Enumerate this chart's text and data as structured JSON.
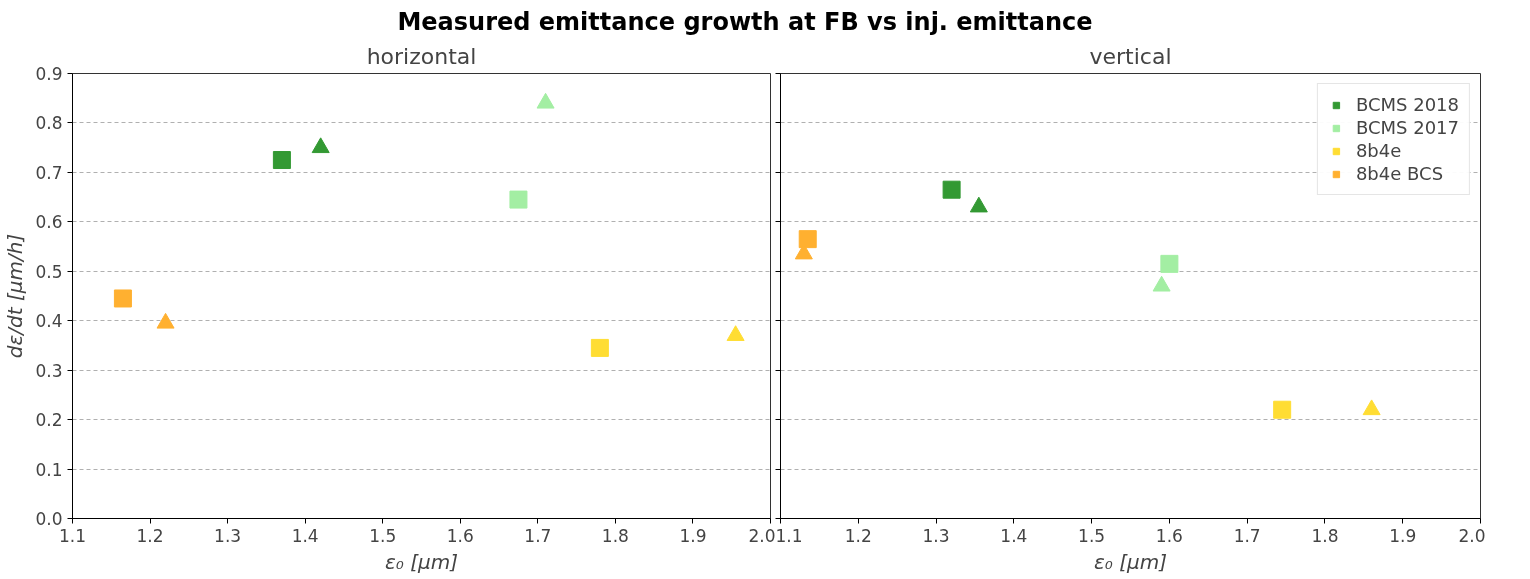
{
  "chart_data": [
    {
      "type": "scatter",
      "title": "horizontal",
      "annotations": [
        "Measured emittance growth at FB vs inj. emittance"
      ],
      "xlabel": "ε₀ [μm]",
      "ylabel": "dε/dt [μm/h]",
      "xlim": [
        1.1,
        2.0
      ],
      "xticks": [
        {
          "value": 1.1,
          "label": "1.1"
        },
        {
          "value": 1.2,
          "label": "1.2"
        },
        {
          "value": 1.3,
          "label": "1.3"
        },
        {
          "value": 1.4,
          "label": "1.4"
        },
        {
          "value": 1.5,
          "label": "1.5"
        },
        {
          "value": 1.6,
          "label": "1.6"
        },
        {
          "value": 1.7,
          "label": "1.7"
        },
        {
          "value": 1.8,
          "label": "1.8"
        },
        {
          "value": 1.9,
          "label": "1.9"
        },
        {
          "value": 2.0,
          "label": "2.0"
        }
      ],
      "ylim": [
        0,
        0.9
      ],
      "yticks": [
        {
          "value": 0,
          "label": "0.0"
        },
        {
          "value": 0.1,
          "label": "0.1"
        },
        {
          "value": 0.2,
          "label": "0.2"
        },
        {
          "value": 0.3,
          "label": "0.3"
        },
        {
          "value": 0.4,
          "label": "0.4"
        },
        {
          "value": 0.5,
          "label": "0.5"
        },
        {
          "value": 0.6,
          "label": "0.6"
        },
        {
          "value": 0.7,
          "label": "0.7"
        },
        {
          "value": 0.8,
          "label": "0.8"
        },
        {
          "value": 0.9,
          "label": "0.9"
        }
      ],
      "grid": "y",
      "legend": false,
      "series": [
        {
          "color": "#339933",
          "marker": "square",
          "x": [
            1.37
          ],
          "values": [
            0.725
          ]
        },
        {
          "color": "#a3eea3",
          "marker": "square",
          "x": [
            1.675
          ],
          "values": [
            0.645
          ]
        },
        {
          "color": "#ffdd33",
          "marker": "square",
          "x": [
            1.78
          ],
          "values": [
            0.345
          ]
        },
        {
          "color": "#ffb030",
          "marker": "square",
          "x": [
            1.165
          ],
          "values": [
            0.445
          ]
        },
        {
          "color": "#339933",
          "marker": "triangle",
          "x": [
            1.42
          ],
          "values": [
            0.75
          ]
        },
        {
          "color": "#a3eea3",
          "marker": "triangle",
          "x": [
            1.71
          ],
          "values": [
            0.84
          ]
        },
        {
          "color": "#ffdd33",
          "marker": "triangle",
          "x": [
            1.955
          ],
          "values": [
            0.37
          ]
        },
        {
          "color": "#ffb030",
          "marker": "triangle",
          "x": [
            1.22
          ],
          "values": [
            0.395
          ]
        }
      ]
    },
    {
      "type": "scatter",
      "title": "vertical",
      "xlabel": "ε₀ [μm]",
      "xlim": [
        1.1,
        2.0
      ],
      "xticks": [
        {
          "value": 1.1,
          "label": "1.1"
        },
        {
          "value": 1.2,
          "label": "1.2"
        },
        {
          "value": 1.3,
          "label": "1.3"
        },
        {
          "value": 1.4,
          "label": "1.4"
        },
        {
          "value": 1.5,
          "label": "1.5"
        },
        {
          "value": 1.6,
          "label": "1.6"
        },
        {
          "value": 1.7,
          "label": "1.7"
        },
        {
          "value": 1.8,
          "label": "1.8"
        },
        {
          "value": 1.9,
          "label": "1.9"
        },
        {
          "value": 2.0,
          "label": "2.0"
        }
      ],
      "ylim": [
        0,
        0.9
      ],
      "yticks": [
        {
          "value": 0,
          "label": null
        },
        {
          "value": 0.1,
          "label": null
        },
        {
          "value": 0.2,
          "label": null
        },
        {
          "value": 0.3,
          "label": null
        },
        {
          "value": 0.4,
          "label": null
        },
        {
          "value": 0.5,
          "label": null
        },
        {
          "value": 0.6,
          "label": null
        },
        {
          "value": 0.7,
          "label": null
        },
        {
          "value": 0.8,
          "label": null
        },
        {
          "value": 0.9,
          "label": null
        }
      ],
      "grid": "y",
      "legend": "top right",
      "tick_labels": "x",
      "series": [
        {
          "name": "BCMS 2018",
          "color": "#339933",
          "marker": "square",
          "x": [
            1.32
          ],
          "values": [
            0.665
          ]
        },
        {
          "name": "BCMS 2017",
          "color": "#a3eea3",
          "marker": "square",
          "x": [
            1.6
          ],
          "values": [
            0.515
          ]
        },
        {
          "name": "8b4e",
          "color": "#ffdd33",
          "marker": "square",
          "x": [
            1.745
          ],
          "values": [
            0.22
          ]
        },
        {
          "name": "8b4e BCS",
          "color": "#ffb030",
          "marker": "square",
          "x": [
            1.135
          ],
          "values": [
            0.565
          ]
        },
        {
          "color": "#339933",
          "marker": "triangle",
          "x": [
            1.355
          ],
          "values": [
            0.63
          ]
        },
        {
          "color": "#a3eea3",
          "marker": "triangle",
          "x": [
            1.59
          ],
          "values": [
            0.47
          ]
        },
        {
          "color": "#ffdd33",
          "marker": "triangle",
          "x": [
            1.86
          ],
          "values": [
            0.22
          ]
        },
        {
          "color": "#ffb030",
          "marker": "triangle",
          "x": [
            1.13
          ],
          "values": [
            0.535
          ]
        }
      ]
    }
  ]
}
